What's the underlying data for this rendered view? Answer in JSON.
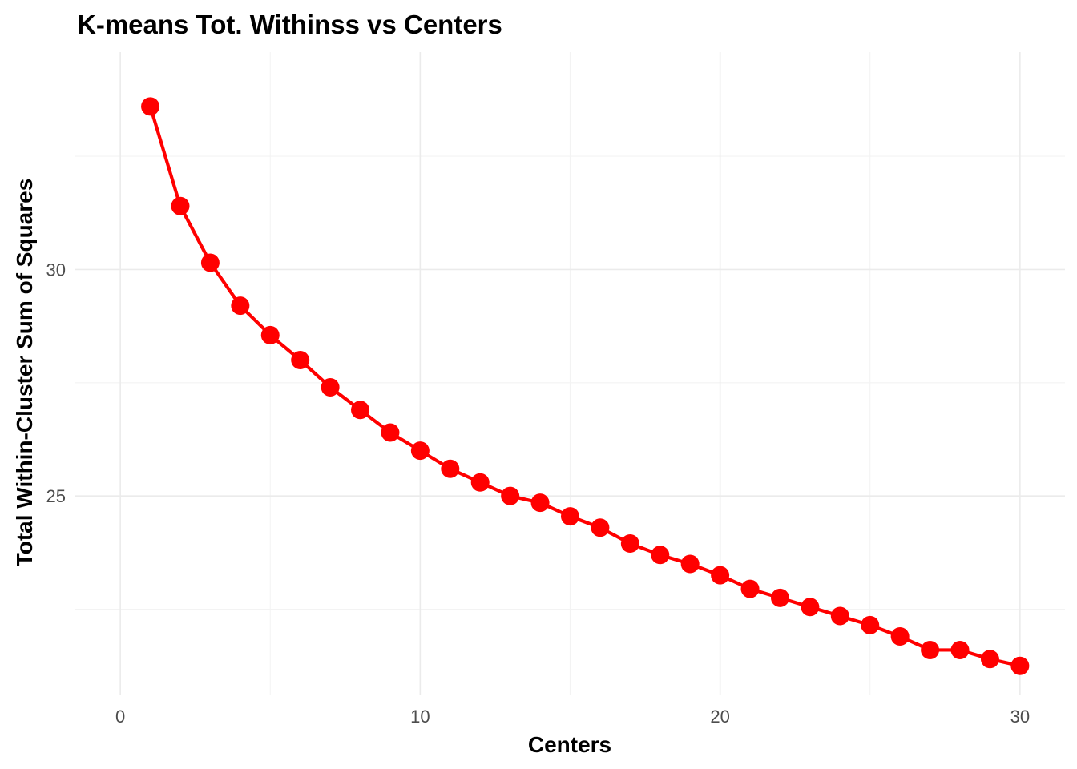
{
  "chart_data": {
    "type": "line",
    "title": "K-means Tot. Withinss vs Centers",
    "xlabel": "Centers",
    "ylabel": "Total Within-Cluster Sum of Squares",
    "xlim": [
      -1.5,
      31.5
    ],
    "ylim": [
      20.6,
      34.8
    ],
    "x_ticks": [
      0,
      10,
      20,
      30
    ],
    "x_tick_labels": [
      "0",
      "10",
      "20",
      "30"
    ],
    "y_ticks": [
      25,
      30
    ],
    "y_tick_labels": [
      "25",
      "30"
    ],
    "x_minor_ticks": [
      5,
      15,
      25
    ],
    "y_minor_ticks": [
      22.5,
      27.5,
      32.5
    ],
    "grid": true,
    "legend": "none",
    "colors": {
      "series": "#ff0000",
      "grid_major": "#ebebeb",
      "grid_minor": "#f3f3f3",
      "tick_text": "#4d4d4d"
    },
    "series": [
      {
        "x": [
          1,
          2,
          3,
          4,
          5,
          6,
          7,
          8,
          9,
          10,
          11,
          12,
          13,
          14,
          15,
          16,
          17,
          18,
          19,
          20,
          21,
          22,
          23,
          24,
          25,
          26,
          27,
          28,
          29,
          30
        ],
        "values": [
          33.6,
          31.4,
          30.15,
          29.2,
          28.55,
          28.0,
          27.4,
          26.9,
          26.4,
          26.0,
          25.6,
          25.3,
          25.0,
          24.85,
          24.55,
          24.3,
          23.95,
          23.7,
          23.5,
          23.25,
          22.95,
          22.75,
          22.55,
          22.35,
          22.15,
          21.9,
          21.6,
          21.6,
          21.4,
          21.25
        ]
      }
    ]
  }
}
